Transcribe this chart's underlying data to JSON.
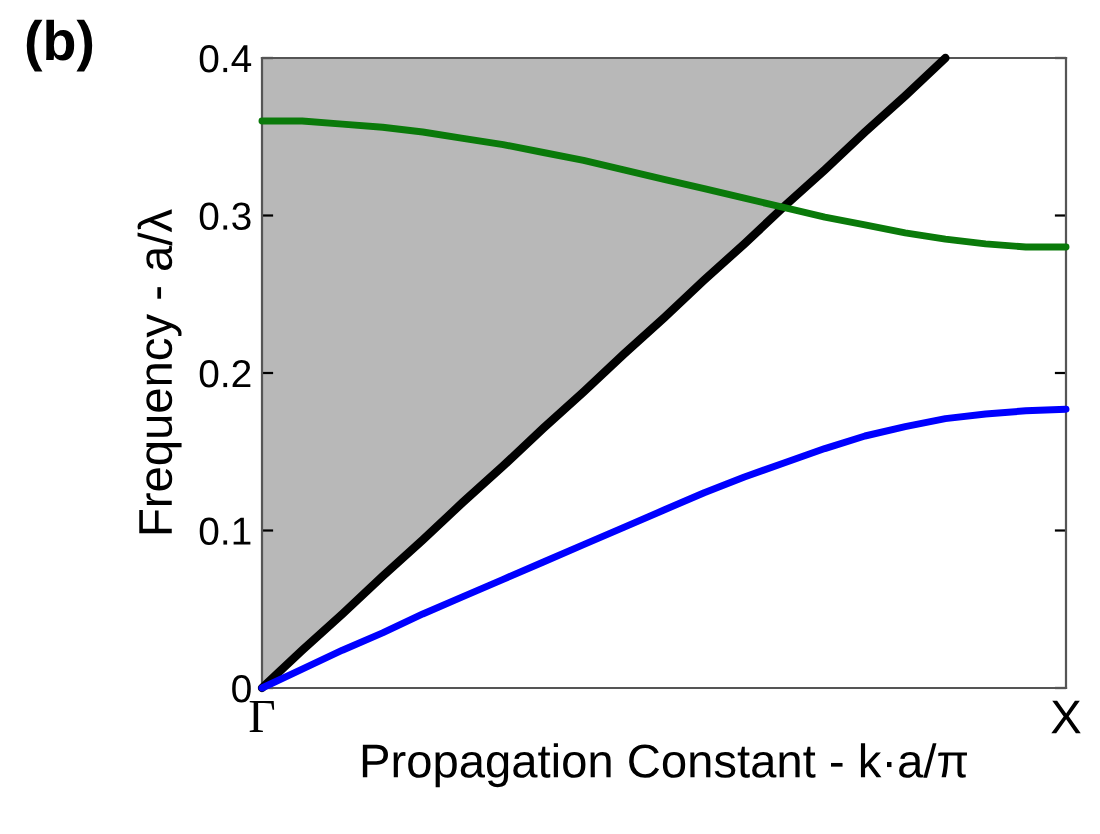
{
  "chart_data": {
    "type": "line",
    "xlabel": "Propagation Constant - k·a/π",
    "ylabel": "Frequency - a/λ",
    "annotations": [
      "(b)"
    ],
    "categories": [
      "Γ",
      null,
      null,
      null,
      null,
      null,
      null,
      null,
      null,
      null,
      null,
      null,
      null,
      null,
      null,
      null,
      null,
      null,
      null,
      null,
      "X"
    ],
    "ylim": [
      0,
      0.4
    ],
    "yticks": [
      0,
      0.1,
      0.2,
      0.3,
      0.4
    ],
    "grid": false,
    "legend": false,
    "series": [
      {
        "color": "#000000",
        "values": [
          0,
          0.024,
          0.047,
          0.071,
          0.094,
          0.118,
          0.141,
          0.165,
          0.188,
          0.212,
          0.235,
          0.259,
          0.282,
          0.306,
          0.329,
          0.353,
          0.376,
          0.4,
          null,
          null,
          null
        ],
        "lower": [
          0,
          0.024,
          0.047,
          0.071,
          0.094,
          0.118,
          0.141,
          0.165,
          0.188,
          0.212,
          0.235,
          0.259,
          0.282,
          0.306,
          0.329,
          0.353,
          0.376,
          0.4,
          null,
          null,
          null
        ],
        "upper": [
          0.4,
          0.4,
          0.4,
          0.4,
          0.4,
          0.4,
          0.4,
          0.4,
          0.4,
          0.4,
          0.4,
          0.4,
          0.4,
          0.4,
          0.4,
          0.4,
          0.4,
          0.4,
          null,
          null,
          null
        ]
      },
      {
        "color": "#0a7a0a",
        "values": [
          0.36,
          0.36,
          0.358,
          0.356,
          0.353,
          0.349,
          0.345,
          0.34,
          0.335,
          0.329,
          0.323,
          0.317,
          0.311,
          0.305,
          0.299,
          0.294,
          0.289,
          0.285,
          0.282,
          0.28,
          0.28
        ]
      },
      {
        "color": "#0000ff",
        "values": [
          0,
          0.012,
          0.024,
          0.035,
          0.047,
          0.058,
          0.069,
          0.08,
          0.091,
          0.102,
          0.113,
          0.124,
          0.134,
          0.143,
          0.152,
          0.16,
          0.166,
          0.171,
          0.174,
          0.176,
          0.177
        ]
      }
    ]
  }
}
